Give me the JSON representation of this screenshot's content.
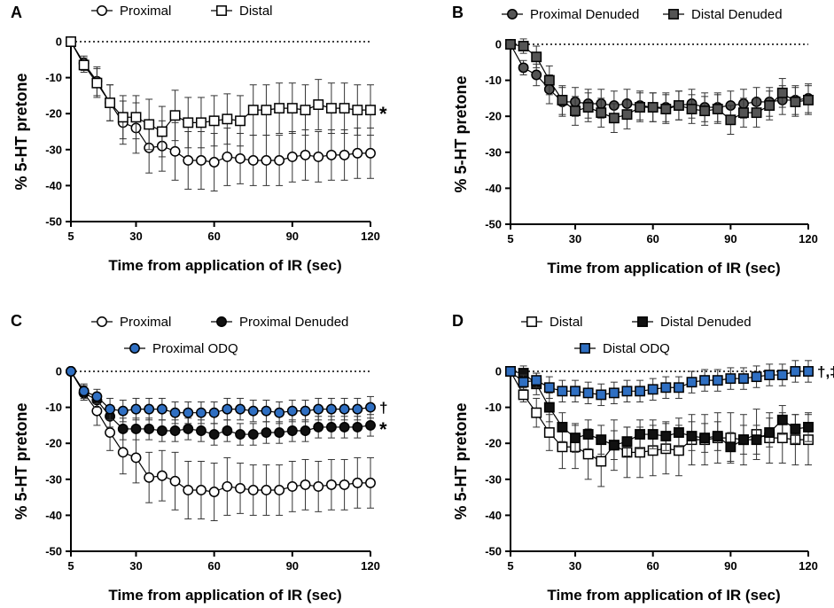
{
  "chart_data": [
    {
      "panel": "A",
      "type": "line",
      "xlabel": "Time from application of IR (sec)",
      "ylabel": "% 5-HT pretone",
      "xticks": [
        5,
        30,
        60,
        90,
        120
      ],
      "yticks": [
        0,
        -10,
        -20,
        -30,
        -40,
        -50
      ],
      "xlim": [
        5,
        120
      ],
      "ylim": [
        -50,
        2
      ],
      "x": [
        5,
        10,
        15,
        20,
        25,
        30,
        35,
        40,
        45,
        50,
        55,
        60,
        65,
        70,
        75,
        80,
        85,
        90,
        95,
        100,
        105,
        110,
        115,
        120
      ],
      "series": [
        {
          "name": "Proximal",
          "marker": "circle",
          "fill": "#ffffff",
          "values": [
            0,
            -6,
            -11,
            -17,
            -22.5,
            -24,
            -29.5,
            -29,
            -30.5,
            -33,
            -33,
            -33.5,
            -32,
            -32.5,
            -33,
            -33,
            -33,
            -32,
            -31.5,
            -32,
            -31.5,
            -31.5,
            -31,
            -31
          ],
          "errors": [
            0,
            2,
            4,
            5,
            6,
            7,
            7,
            7,
            8,
            8,
            8,
            8,
            8,
            7,
            7,
            7,
            7,
            7,
            7,
            7,
            7,
            7,
            7,
            7
          ]
        },
        {
          "name": "Distal",
          "marker": "square",
          "fill": "#ffffff",
          "values": [
            0,
            -6.5,
            -11.5,
            -17,
            -21,
            -21,
            -23,
            -25,
            -20.5,
            -22.5,
            -22.5,
            -22,
            -21.5,
            -22,
            -19,
            -19,
            -18.5,
            -18.5,
            -19,
            -17.5,
            -18.5,
            -18.5,
            -19,
            -19
          ],
          "errors": [
            0,
            2,
            4,
            5,
            6,
            6,
            7,
            7,
            7,
            7,
            7,
            7,
            7,
            7,
            7,
            7,
            7,
            7,
            7,
            7,
            7,
            7,
            7,
            7
          ]
        }
      ],
      "annotations": [
        {
          "text": "*",
          "series": "Distal"
        }
      ]
    },
    {
      "panel": "B",
      "type": "line",
      "xlabel": "Time from application of IR (sec)",
      "ylabel": "% 5-HT pretone",
      "xticks": [
        5,
        30,
        60,
        90,
        120
      ],
      "yticks": [
        0,
        -10,
        -20,
        -30,
        -40,
        -50
      ],
      "xlim": [
        5,
        120
      ],
      "ylim": [
        -50,
        2
      ],
      "x": [
        5,
        10,
        15,
        20,
        25,
        30,
        35,
        40,
        45,
        50,
        55,
        60,
        65,
        70,
        75,
        80,
        85,
        90,
        95,
        100,
        105,
        110,
        115,
        120
      ],
      "series": [
        {
          "name": "Proximal Denuded",
          "marker": "circle",
          "fill": "#555555",
          "values": [
            0,
            -6.5,
            -8.5,
            -12.5,
            -16,
            -16,
            -16.5,
            -16.5,
            -17,
            -16.5,
            -17,
            -17.5,
            -17.5,
            -17,
            -16.5,
            -17.5,
            -17.5,
            -17,
            -16.5,
            -16,
            -16,
            -15.5,
            -15.5,
            -15
          ],
          "errors": [
            0,
            2,
            3,
            4,
            4,
            4,
            4,
            4,
            4,
            4,
            4,
            4,
            4,
            4,
            4,
            4,
            4,
            4,
            4,
            4,
            4,
            4,
            4,
            4
          ]
        },
        {
          "name": "Distal Denuded",
          "marker": "square",
          "fill": "#555555",
          "values": [
            0,
            -0.5,
            -3.5,
            -10,
            -15.5,
            -18.5,
            -17.5,
            -19,
            -20.5,
            -19.5,
            -17.5,
            -17.5,
            -18,
            -17,
            -18,
            -18.5,
            -18,
            -21,
            -19,
            -19,
            -17,
            -13.5,
            -16,
            -15.5
          ],
          "errors": [
            0,
            2,
            3,
            4,
            4,
            4,
            4,
            4,
            4,
            4,
            4,
            4,
            4,
            4,
            4,
            4,
            4,
            4,
            4,
            4,
            4,
            4,
            4,
            4
          ]
        }
      ]
    },
    {
      "panel": "C",
      "type": "line",
      "xlabel": "Time from application of IR (sec)",
      "ylabel": "% 5-HT pretone",
      "xticks": [
        5,
        30,
        60,
        90,
        120
      ],
      "yticks": [
        0,
        -10,
        -20,
        -30,
        -40,
        -50
      ],
      "xlim": [
        5,
        120
      ],
      "ylim": [
        -50,
        2
      ],
      "x": [
        5,
        10,
        15,
        20,
        25,
        30,
        35,
        40,
        45,
        50,
        55,
        60,
        65,
        70,
        75,
        80,
        85,
        90,
        95,
        100,
        105,
        110,
        115,
        120
      ],
      "series": [
        {
          "name": "Proximal",
          "marker": "circle",
          "fill": "#ffffff",
          "values": [
            0,
            -6,
            -11,
            -17,
            -22.5,
            -24,
            -29.5,
            -29,
            -30.5,
            -33,
            -33,
            -33.5,
            -32,
            -32.5,
            -33,
            -33,
            -33,
            -32,
            -31.5,
            -32,
            -31.5,
            -31.5,
            -31,
            -31
          ],
          "errors": [
            0,
            2,
            4,
            5,
            6,
            7,
            7,
            7,
            8,
            8,
            8,
            8,
            8,
            7,
            7,
            7,
            7,
            7,
            7,
            7,
            7,
            7,
            7,
            7
          ]
        },
        {
          "name": "Proximal Denuded",
          "marker": "circle",
          "fill": "#111111",
          "values": [
            0,
            -6,
            -8,
            -12.5,
            -16,
            -16,
            -16,
            -16.5,
            -16.5,
            -16,
            -16.5,
            -17.5,
            -16.5,
            -17.5,
            -17.5,
            -17,
            -17,
            -16.5,
            -16.5,
            -15.5,
            -15.5,
            -15.5,
            -15.5,
            -15
          ],
          "errors": [
            0,
            2,
            2,
            3,
            3,
            3,
            3,
            3,
            3,
            3,
            3,
            3,
            3,
            3,
            3,
            3,
            3,
            3,
            3,
            3,
            3,
            3,
            3,
            3
          ]
        },
        {
          "name": "Proximal ODQ",
          "marker": "circle",
          "fill": "#2f6fc2",
          "values": [
            0,
            -5.5,
            -7,
            -10.5,
            -11,
            -10.5,
            -10.5,
            -10.5,
            -11.5,
            -11.5,
            -11.5,
            -11.5,
            -10.5,
            -10.5,
            -11,
            -11,
            -11.5,
            -11,
            -11,
            -10.5,
            -10.5,
            -10.5,
            -10.5,
            -10
          ],
          "errors": [
            0,
            2,
            2,
            3,
            3,
            3,
            3,
            3,
            3,
            3,
            3,
            3,
            3,
            3,
            3,
            3,
            3,
            3,
            3,
            3,
            3,
            3,
            3,
            3
          ]
        }
      ],
      "annotations": [
        {
          "text": "†",
          "series": "Proximal ODQ"
        },
        {
          "text": "*",
          "series": "Proximal Denuded"
        }
      ]
    },
    {
      "panel": "D",
      "type": "line",
      "xlabel": "Time from application of IR (sec)",
      "ylabel": "% 5-HT pretone",
      "xticks": [
        5,
        30,
        60,
        90,
        120
      ],
      "yticks": [
        0,
        -10,
        -20,
        -30,
        -40,
        -50
      ],
      "xlim": [
        5,
        120
      ],
      "ylim": [
        -50,
        2
      ],
      "x": [
        5,
        10,
        15,
        20,
        25,
        30,
        35,
        40,
        45,
        50,
        55,
        60,
        65,
        70,
        75,
        80,
        85,
        90,
        95,
        100,
        105,
        110,
        115,
        120
      ],
      "series": [
        {
          "name": "Distal",
          "marker": "square",
          "fill": "#ffffff",
          "values": [
            0,
            -6.5,
            -11.5,
            -17,
            -21,
            -21,
            -23,
            -25,
            -20.5,
            -22.5,
            -22.5,
            -22,
            -21.5,
            -22,
            -19,
            -19,
            -18.5,
            -18.5,
            -19,
            -17.5,
            -18.5,
            -18.5,
            -19,
            -19
          ],
          "errors": [
            0,
            2,
            4,
            5,
            6,
            6,
            7,
            7,
            7,
            7,
            7,
            7,
            7,
            7,
            7,
            7,
            7,
            7,
            7,
            7,
            7,
            7,
            7,
            7
          ]
        },
        {
          "name": "Distal Denuded",
          "marker": "square",
          "fill": "#111111",
          "values": [
            0,
            -0.5,
            -3.5,
            -10,
            -15.5,
            -18.5,
            -17.5,
            -19,
            -20.5,
            -19.5,
            -17.5,
            -17.5,
            -18,
            -17,
            -18,
            -18.5,
            -18,
            -21,
            -19,
            -19,
            -17,
            -13.5,
            -16,
            -15.5
          ],
          "errors": [
            0,
            2,
            3,
            4,
            4,
            4,
            4,
            4,
            4,
            4,
            4,
            4,
            4,
            4,
            4,
            4,
            4,
            4,
            4,
            4,
            4,
            4,
            4,
            4
          ]
        },
        {
          "name": "Distal ODQ",
          "marker": "square",
          "fill": "#2f6fc2",
          "values": [
            0,
            -3,
            -2.5,
            -4.5,
            -5.5,
            -5.5,
            -6,
            -6.5,
            -6,
            -5.5,
            -5.5,
            -5,
            -4.5,
            -4.5,
            -3,
            -2.5,
            -2.5,
            -2,
            -2,
            -1.5,
            -1,
            -1,
            0,
            0
          ],
          "errors": [
            0,
            2,
            2,
            3,
            3,
            3,
            3,
            3,
            3,
            3,
            3,
            3,
            3,
            3,
            3,
            3,
            3,
            3,
            3,
            3,
            3,
            3,
            3,
            3
          ]
        }
      ],
      "annotations": [
        {
          "text": "†,‡",
          "series": "Distal ODQ"
        }
      ]
    }
  ]
}
